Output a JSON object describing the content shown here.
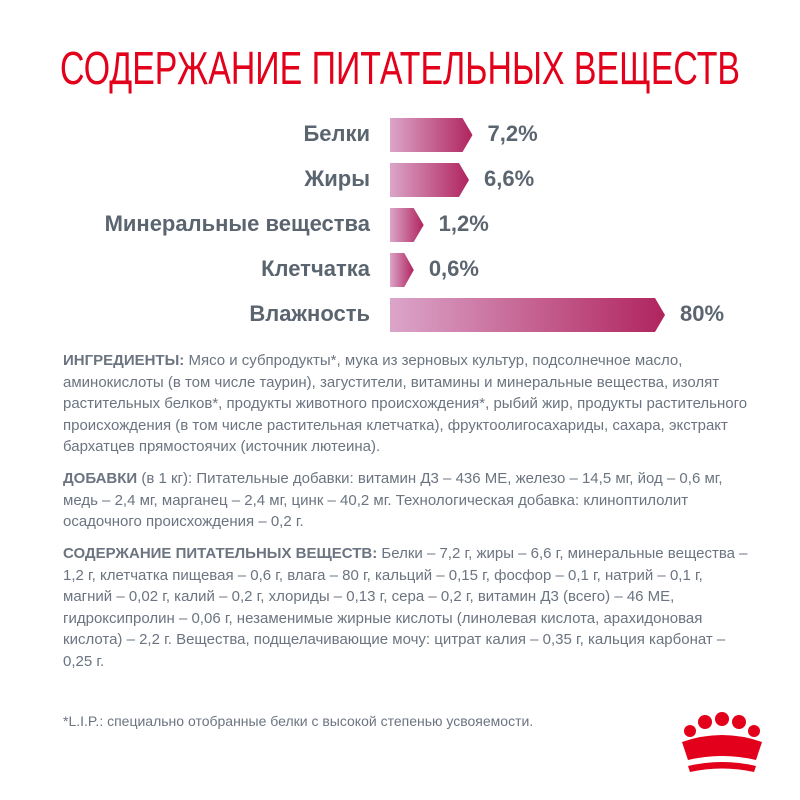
{
  "chart_data": {
    "type": "bar",
    "orientation": "horizontal",
    "scale": "sqrt",
    "title": "СОДЕРЖАНИЕ ПИТАТЕЛЬНЫХ ВЕЩЕСТВ",
    "categories": [
      "Белки",
      "Жиры",
      "Минеральные вещества",
      "Клетчатка",
      "Влажность"
    ],
    "values": [
      7.2,
      6.6,
      1.2,
      0.6,
      80
    ],
    "value_labels": [
      "7,2%",
      "6,6%",
      "1,2%",
      "0,6%",
      "80%"
    ],
    "colors": [
      "#dba5c9",
      "#b0245e"
    ]
  },
  "ingredients": {
    "label": "ИНГРЕДИЕНТЫ:",
    "text": "Мясо и субпродукты*, мука из зерновых культур, подсолнечное масло, аминокислоты (в том числе таурин), загустители, витамины и минеральные вещества, изолят растительных белков*, продукты животного происхождения*, рыбий жир, продукты растительного происхождения (в том числе растительная клетчатка), фруктоолигосахариды, сахара, экстракт бархатцев прямостоячих (источник лютеина)."
  },
  "additives": {
    "label": "ДОБАВКИ",
    "unit": "(в 1 кг):",
    "text": "Питательные добавки: витамин Д3 – 436 МЕ, железо – 14,5 мг, йод – 0,6 мг, медь – 2,4 мг, марганец – 2,4 мг, цинк – 40,2 мг. Технологическая добавка: клиноптилолит осадочного происхождения – 0,2 г."
  },
  "nutrients": {
    "label": "СОДЕРЖАНИЕ ПИТАТЕЛЬНЫХ ВЕЩЕСТВ:",
    "text": "Белки – 7,2 г, жиры – 6,6 г, минеральные вещества – 1,2 г, клетчатка пищевая – 0,6 г, влага – 80 г, кальций – 0,15 г, фосфор – 0,1 г, натрий – 0,1 г, магний – 0,02 г, калий – 0,2 г, хлориды – 0,13 г, сера – 0,2 г, витамин Д3 (всего) – 46 МЕ, гидроксипролин – 0,06 г, незаменимые жирные кислоты (линолевая кислота, арахидоновая кислота) – 2,2 г. Вещества, подщелачивающие мочу: цитрат калия – 0,35 г, кальция карбонат – 0,25 г."
  },
  "footnote": "*L.I.P.: специально отобранные белки с высокой степенью усвояемости."
}
